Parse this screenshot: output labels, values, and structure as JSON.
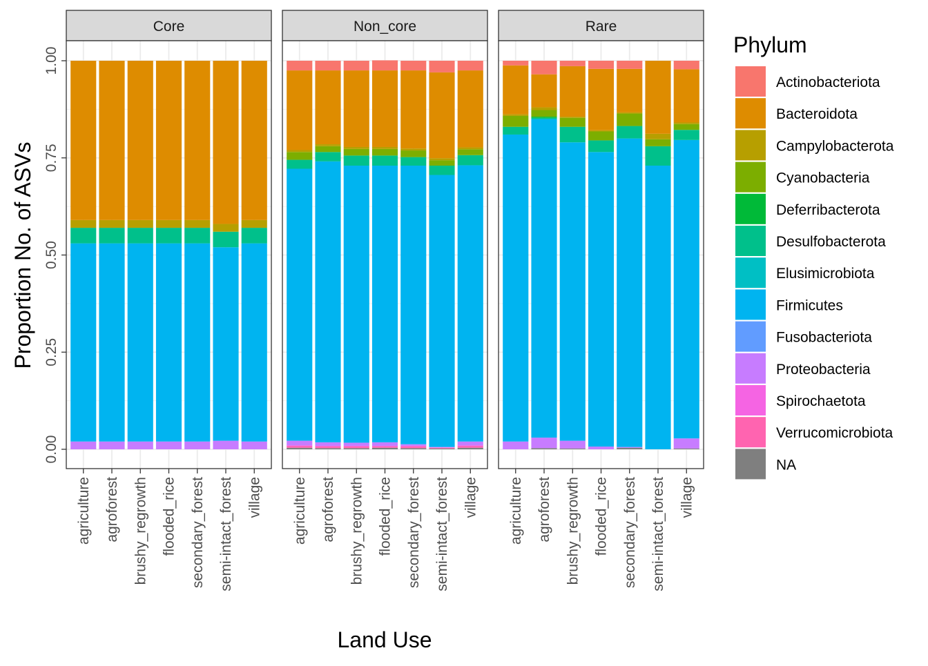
{
  "chart_data": {
    "type": "bar",
    "stacked": true,
    "xlabel": "Land Use",
    "ylabel": "Proportion No. of ASVs",
    "ylim": [
      0,
      1
    ],
    "y_ticks": [
      "0.00",
      "0.25",
      "0.50",
      "0.75",
      "1.00"
    ],
    "categories": [
      "agriculture",
      "agroforest",
      "brushy_regrowth",
      "flooded_rice",
      "secondary_forest",
      "semi-intact_forest",
      "village"
    ],
    "legend": {
      "title": "Phylum",
      "position": "right",
      "entries": [
        {
          "name": "Actinobacteriota",
          "color": "#F8766D"
        },
        {
          "name": "Bacteroidota",
          "color": "#DE8C00"
        },
        {
          "name": "Campylobacterota",
          "color": "#B79F00"
        },
        {
          "name": "Cyanobacteria",
          "color": "#7CAE00"
        },
        {
          "name": "Deferribacterota",
          "color": "#00BA38"
        },
        {
          "name": "Desulfobacterota",
          "color": "#00C08B"
        },
        {
          "name": "Elusimicrobiota",
          "color": "#00BFC4"
        },
        {
          "name": "Firmicutes",
          "color": "#00B4F0"
        },
        {
          "name": "Fusobacteriota",
          "color": "#619CFF"
        },
        {
          "name": "Proteobacteria",
          "color": "#C77CFF"
        },
        {
          "name": "Spirochaetota",
          "color": "#F564E3"
        },
        {
          "name": "Verrucomicrobiota",
          "color": "#FF64B0"
        },
        {
          "name": "NA",
          "color": "#7F7F7F"
        }
      ]
    },
    "stack_order_bottom_to_top": [
      "NA",
      "Verrucomicrobiota",
      "Spirochaetota",
      "Proteobacteria",
      "Fusobacteriota",
      "Firmicutes",
      "Elusimicrobiota",
      "Desulfobacterota",
      "Deferribacterota",
      "Cyanobacteria",
      "Campylobacterota",
      "Bacteroidota",
      "Actinobacteriota"
    ],
    "panels": [
      {
        "name": "Core",
        "bars": [
          {
            "category": "agriculture",
            "segments": {
              "Proteobacteria": 0.02,
              "Firmicutes": 0.51,
              "Desulfobacterota": 0.04,
              "Campylobacterota": 0.02,
              "Bacteroidota": 0.41
            }
          },
          {
            "category": "agroforest",
            "segments": {
              "Proteobacteria": 0.02,
              "Firmicutes": 0.51,
              "Desulfobacterota": 0.04,
              "Campylobacterota": 0.02,
              "Bacteroidota": 0.41
            }
          },
          {
            "category": "brushy_regrowth",
            "segments": {
              "Proteobacteria": 0.02,
              "Firmicutes": 0.51,
              "Desulfobacterota": 0.04,
              "Campylobacterota": 0.02,
              "Bacteroidota": 0.41
            }
          },
          {
            "category": "flooded_rice",
            "segments": {
              "Proteobacteria": 0.02,
              "Firmicutes": 0.51,
              "Desulfobacterota": 0.04,
              "Campylobacterota": 0.02,
              "Bacteroidota": 0.41
            }
          },
          {
            "category": "secondary_forest",
            "segments": {
              "Proteobacteria": 0.02,
              "Firmicutes": 0.51,
              "Desulfobacterota": 0.04,
              "Campylobacterota": 0.02,
              "Bacteroidota": 0.41
            }
          },
          {
            "category": "semi-intact_forest",
            "segments": {
              "Proteobacteria": 0.022,
              "Firmicutes": 0.498,
              "Desulfobacterota": 0.04,
              "Campylobacterota": 0.02,
              "Bacteroidota": 0.42
            }
          },
          {
            "category": "village",
            "segments": {
              "Proteobacteria": 0.02,
              "Firmicutes": 0.51,
              "Desulfobacterota": 0.04,
              "Campylobacterota": 0.02,
              "Bacteroidota": 0.41
            }
          }
        ]
      },
      {
        "name": "Non_core",
        "bars": [
          {
            "category": "agriculture",
            "segments": {
              "NA": 0.004,
              "Verrucomicrobiota": 0.004,
              "Spirochaetota": 0.002,
              "Proteobacteria": 0.012,
              "Firmicutes": 0.7,
              "Desulfobacterota": 0.023,
              "Cyanobacteria": 0.02,
              "Campylobacterota": 0.005,
              "Bacteroidota": 0.205,
              "Actinobacteriota": 0.025
            }
          },
          {
            "category": "agroforest",
            "segments": {
              "NA": 0.003,
              "Verrucomicrobiota": 0.004,
              "Spirochaetota": 0.002,
              "Proteobacteria": 0.009,
              "Firmicutes": 0.723,
              "Desulfobacterota": 0.024,
              "Cyanobacteria": 0.015,
              "Campylobacterota": 0.005,
              "Bacteroidota": 0.19,
              "Actinobacteriota": 0.025
            }
          },
          {
            "category": "brushy_regrowth",
            "segments": {
              "NA": 0.003,
              "Verrucomicrobiota": 0.004,
              "Spirochaetota": 0.002,
              "Proteobacteria": 0.008,
              "Firmicutes": 0.713,
              "Desulfobacterota": 0.026,
              "Cyanobacteria": 0.017,
              "Campylobacterota": 0.005,
              "Bacteroidota": 0.197,
              "Actinobacteriota": 0.025
            }
          },
          {
            "category": "flooded_rice",
            "segments": {
              "NA": 0.004,
              "Verrucomicrobiota": 0.003,
              "Spirochaetota": 0.002,
              "Proteobacteria": 0.009,
              "Firmicutes": 0.712,
              "Desulfobacterota": 0.026,
              "Cyanobacteria": 0.017,
              "Campylobacterota": 0.005,
              "Bacteroidota": 0.197,
              "Actinobacteriota": 0.026
            }
          },
          {
            "category": "secondary_forest",
            "segments": {
              "NA": 0.003,
              "Verrucomicrobiota": 0.004,
              "Spirochaetota": 0.002,
              "Proteobacteria": 0.004,
              "Firmicutes": 0.717,
              "Desulfobacterota": 0.022,
              "Cyanobacteria": 0.017,
              "Campylobacterota": 0.005,
              "Bacteroidota": 0.201,
              "Actinobacteriota": 0.025
            }
          },
          {
            "category": "semi-intact_forest",
            "segments": {
              "NA": 0.002,
              "Verrucomicrobiota": 0.002,
              "Spirochaetota": 0.001,
              "Proteobacteria": 0.001,
              "Firmicutes": 0.7,
              "Desulfobacterota": 0.024,
              "Cyanobacteria": 0.014,
              "Campylobacterota": 0.005,
              "Bacteroidota": 0.221,
              "Actinobacteriota": 0.03
            }
          },
          {
            "category": "village",
            "segments": {
              "NA": 0.004,
              "Verrucomicrobiota": 0.004,
              "Spirochaetota": 0.002,
              "Proteobacteria": 0.01,
              "Firmicutes": 0.711,
              "Desulfobacterota": 0.026,
              "Cyanobacteria": 0.015,
              "Campylobacterota": 0.005,
              "Bacteroidota": 0.198,
              "Actinobacteriota": 0.025
            }
          }
        ]
      },
      {
        "name": "Rare",
        "bars": [
          {
            "category": "agriculture",
            "segments": {
              "Proteobacteria": 0.02,
              "Firmicutes": 0.79,
              "Desulfobacterota": 0.02,
              "Cyanobacteria": 0.028,
              "Campylobacterota": 0.004,
              "Bacteroidota": 0.126,
              "Actinobacteriota": 0.012
            }
          },
          {
            "category": "agroforest",
            "segments": {
              "NA": 0.003,
              "Proteobacteria": 0.027,
              "Firmicutes": 0.82,
              "Desulfobacterota": 0.003,
              "Deferribacterota": 0.003,
              "Cyanobacteria": 0.017,
              "Campylobacterota": 0.007,
              "Bacteroidota": 0.085,
              "Actinobacteriota": 0.035
            }
          },
          {
            "category": "brushy_regrowth",
            "segments": {
              "NA": 0.002,
              "Proteobacteria": 0.02,
              "Firmicutes": 0.768,
              "Desulfobacterota": 0.04,
              "Cyanobacteria": 0.023,
              "Campylobacterota": 0.003,
              "Bacteroidota": 0.13,
              "Actinobacteriota": 0.014
            }
          },
          {
            "category": "flooded_rice",
            "segments": {
              "Proteobacteria": 0.007,
              "Firmicutes": 0.758,
              "Desulfobacterota": 0.03,
              "Cyanobacteria": 0.023,
              "Campylobacterota": 0.003,
              "Bacteroidota": 0.158,
              "Actinobacteriota": 0.021
            }
          },
          {
            "category": "secondary_forest",
            "segments": {
              "NA": 0.004,
              "Proteobacteria": 0.002,
              "Firmicutes": 0.794,
              "Desulfobacterota": 0.032,
              "Cyanobacteria": 0.032,
              "Campylobacterota": 0.003,
              "Bacteroidota": 0.112,
              "Actinobacteriota": 0.021
            }
          },
          {
            "category": "semi-intact_forest",
            "segments": {
              "Firmicutes": 0.73,
              "Desulfobacterota": 0.05,
              "Cyanobacteria": 0.018,
              "Campylobacterota": 0.014,
              "Bacteroidota": 0.188
            }
          },
          {
            "category": "village",
            "segments": {
              "NA": 0.002,
              "Proteobacteria": 0.026,
              "Firmicutes": 0.768,
              "Desulfobacterota": 0.026,
              "Cyanobacteria": 0.015,
              "Campylobacterota": 0.004,
              "Bacteroidota": 0.137,
              "Actinobacteriota": 0.022
            }
          }
        ]
      }
    ]
  }
}
